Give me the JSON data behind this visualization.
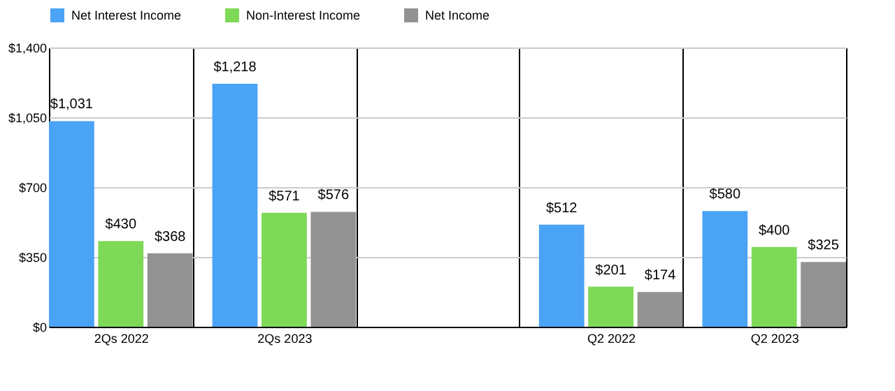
{
  "chart_data": {
    "type": "bar",
    "categories": [
      "2Qs 2022",
      "2Qs 2023",
      null,
      "Q2 2022",
      "Q2 2023"
    ],
    "series": [
      {
        "name": "Net Interest Income",
        "color": "#4ba3f5",
        "values": [
          1031,
          1218,
          null,
          512,
          580
        ],
        "value_labels": [
          "$1,031",
          "$1,218",
          null,
          "$512",
          "$580"
        ]
      },
      {
        "name": "Non-Interest Income",
        "color": "#7ed957",
        "values": [
          430,
          571,
          null,
          201,
          400
        ],
        "value_labels": [
          "$430",
          "$571",
          null,
          "$201",
          "$400"
        ]
      },
      {
        "name": "Net Income",
        "color": "#929292",
        "values": [
          368,
          576,
          null,
          174,
          325
        ],
        "value_labels": [
          "$368",
          "$576",
          null,
          "$174",
          "$325"
        ]
      }
    ],
    "ylim": [
      0,
      1400
    ],
    "yticks": [
      {
        "value": 0,
        "label": "$0"
      },
      {
        "value": 350,
        "label": "$350"
      },
      {
        "value": 700,
        "label": "$700"
      },
      {
        "value": 1050,
        "label": "$1,050"
      },
      {
        "value": 1400,
        "label": "$1,400"
      }
    ],
    "grid": true,
    "legend": "top"
  }
}
